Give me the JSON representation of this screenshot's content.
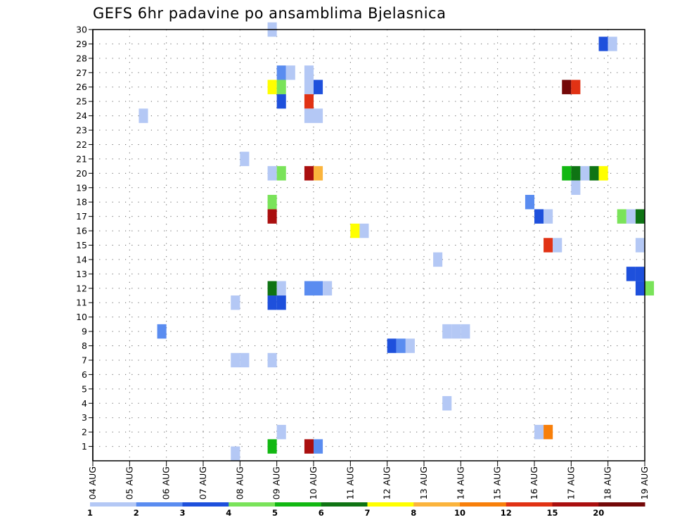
{
  "chart_data": {
    "type": "heatmap",
    "title": "GEFS 6hr padavine po ansamblima Bjelasnica",
    "x_tick_labels": [
      "04 AUG",
      "05 AUG",
      "06 AUG",
      "07 AUG",
      "08 AUG",
      "09 AUG",
      "10 AUG",
      "11 AUG",
      "12 AUG",
      "13 AUG",
      "14 AUG",
      "15 AUG",
      "16 AUG",
      "17 AUG",
      "18 AUG",
      "19 AUG"
    ],
    "y_tick_labels": [
      "1",
      "2",
      "3",
      "4",
      "5",
      "6",
      "7",
      "8",
      "9",
      "10",
      "11",
      "12",
      "13",
      "14",
      "15",
      "16",
      "17",
      "18",
      "19",
      "20",
      "21",
      "22",
      "23",
      "24",
      "25",
      "26",
      "27",
      "28",
      "29",
      "30"
    ],
    "xlim_days": [
      0,
      15
    ],
    "ylim_members": [
      0,
      30
    ],
    "grid": "dotted",
    "legend": {
      "placement": "bottom",
      "labels": [
        "1",
        "2",
        "3",
        "4",
        "5",
        "6",
        "7",
        "8",
        "10",
        "12",
        "15",
        "20"
      ],
      "colors": [
        "#b4c8f5",
        "#5a8cf0",
        "#1e50dc",
        "#7ae35a",
        "#12b812",
        "#0f7414",
        "#ffff00",
        "#fbb43c",
        "#f87f0a",
        "#e13214",
        "#aa0f0f",
        "#740808"
      ]
    },
    "cells": [
      {
        "day": 3.75,
        "member": 0.0,
        "color": "#b4c8f5"
      },
      {
        "day": 4.75,
        "member": 29.5,
        "color": "#b4c8f5"
      },
      {
        "day": 13.75,
        "member": 28.5,
        "color": "#1e50dc"
      },
      {
        "day": 14.0,
        "member": 28.5,
        "color": "#b4c8f5"
      },
      {
        "day": 5.0,
        "member": 26.5,
        "color": "#5a8cf0"
      },
      {
        "day": 5.25,
        "member": 26.5,
        "color": "#b4c8f5"
      },
      {
        "day": 5.75,
        "member": 26.5,
        "color": "#b4c8f5"
      },
      {
        "day": 4.75,
        "member": 25.5,
        "color": "#ffff00"
      },
      {
        "day": 5.0,
        "member": 25.5,
        "color": "#7ae35a"
      },
      {
        "day": 5.75,
        "member": 25.5,
        "color": "#b4c8f5"
      },
      {
        "day": 6.0,
        "member": 25.5,
        "color": "#1e50dc"
      },
      {
        "day": 12.75,
        "member": 25.5,
        "color": "#740808"
      },
      {
        "day": 13.0,
        "member": 25.5,
        "color": "#e13214"
      },
      {
        "day": 5.0,
        "member": 24.5,
        "color": "#1e50dc"
      },
      {
        "day": 5.75,
        "member": 24.5,
        "color": "#e13214"
      },
      {
        "day": 5.75,
        "member": 23.5,
        "color": "#b4c8f5"
      },
      {
        "day": 6.0,
        "member": 23.5,
        "color": "#b4c8f5"
      },
      {
        "day": 1.25,
        "member": 23.5,
        "color": "#b4c8f5"
      },
      {
        "day": 4.0,
        "member": 20.5,
        "color": "#b4c8f5"
      },
      {
        "day": 4.75,
        "member": 19.5,
        "color": "#b4c8f5"
      },
      {
        "day": 5.0,
        "member": 19.5,
        "color": "#7ae35a"
      },
      {
        "day": 5.75,
        "member": 19.5,
        "color": "#aa0f0f"
      },
      {
        "day": 6.0,
        "member": 19.5,
        "color": "#fbb43c"
      },
      {
        "day": 12.75,
        "member": 19.5,
        "color": "#12b812"
      },
      {
        "day": 13.0,
        "member": 19.5,
        "color": "#0f7414"
      },
      {
        "day": 13.25,
        "member": 19.5,
        "color": "#b4c8f5"
      },
      {
        "day": 13.5,
        "member": 19.5,
        "color": "#0f7414"
      },
      {
        "day": 13.75,
        "member": 19.5,
        "color": "#ffff00"
      },
      {
        "day": 13.0,
        "member": 18.5,
        "color": "#b4c8f5"
      },
      {
        "day": 4.75,
        "member": 17.5,
        "color": "#7ae35a"
      },
      {
        "day": 11.75,
        "member": 17.5,
        "color": "#5a8cf0"
      },
      {
        "day": 4.75,
        "member": 16.5,
        "color": "#aa0f0f"
      },
      {
        "day": 12.0,
        "member": 16.5,
        "color": "#1e50dc"
      },
      {
        "day": 12.25,
        "member": 16.5,
        "color": "#b4c8f5"
      },
      {
        "day": 14.25,
        "member": 16.5,
        "color": "#7ae35a"
      },
      {
        "day": 14.5,
        "member": 16.5,
        "color": "#b4c8f5"
      },
      {
        "day": 14.75,
        "member": 16.5,
        "color": "#0f7414"
      },
      {
        "day": 7.0,
        "member": 15.5,
        "color": "#ffff00"
      },
      {
        "day": 7.25,
        "member": 15.5,
        "color": "#b4c8f5"
      },
      {
        "day": 12.25,
        "member": 14.5,
        "color": "#e13214"
      },
      {
        "day": 12.5,
        "member": 14.5,
        "color": "#b4c8f5"
      },
      {
        "day": 14.75,
        "member": 14.5,
        "color": "#b4c8f5"
      },
      {
        "day": 9.25,
        "member": 13.5,
        "color": "#b4c8f5"
      },
      {
        "day": 14.5,
        "member": 12.5,
        "color": "#1e50dc"
      },
      {
        "day": 14.75,
        "member": 12.5,
        "color": "#1e50dc"
      },
      {
        "day": 4.75,
        "member": 11.5,
        "color": "#0f7414"
      },
      {
        "day": 5.0,
        "member": 11.5,
        "color": "#b4c8f5"
      },
      {
        "day": 5.75,
        "member": 11.5,
        "color": "#5a8cf0"
      },
      {
        "day": 6.0,
        "member": 11.5,
        "color": "#5a8cf0"
      },
      {
        "day": 6.25,
        "member": 11.5,
        "color": "#b4c8f5"
      },
      {
        "day": 14.75,
        "member": 11.5,
        "color": "#1e50dc"
      },
      {
        "day": 15.0,
        "member": 11.5,
        "color": "#7ae35a"
      },
      {
        "day": 4.75,
        "member": 10.5,
        "color": "#1e50dc"
      },
      {
        "day": 5.0,
        "member": 10.5,
        "color": "#1e50dc"
      },
      {
        "day": 3.75,
        "member": 10.5,
        "color": "#b4c8f5"
      },
      {
        "day": 1.75,
        "member": 8.5,
        "color": "#5a8cf0"
      },
      {
        "day": 9.5,
        "member": 8.5,
        "color": "#b4c8f5"
      },
      {
        "day": 9.75,
        "member": 8.5,
        "color": "#b4c8f5"
      },
      {
        "day": 10.0,
        "member": 8.5,
        "color": "#b4c8f5"
      },
      {
        "day": 8.0,
        "member": 7.5,
        "color": "#1e50dc"
      },
      {
        "day": 8.25,
        "member": 7.5,
        "color": "#5a8cf0"
      },
      {
        "day": 8.5,
        "member": 7.5,
        "color": "#b4c8f5"
      },
      {
        "day": 3.75,
        "member": 6.5,
        "color": "#b4c8f5"
      },
      {
        "day": 4.0,
        "member": 6.5,
        "color": "#b4c8f5"
      },
      {
        "day": 4.75,
        "member": 6.5,
        "color": "#b4c8f5"
      },
      {
        "day": 9.5,
        "member": 3.5,
        "color": "#b4c8f5"
      },
      {
        "day": 5.0,
        "member": 1.5,
        "color": "#b4c8f5"
      },
      {
        "day": 12.0,
        "member": 1.5,
        "color": "#b4c8f5"
      },
      {
        "day": 12.25,
        "member": 1.5,
        "color": "#f87f0a"
      },
      {
        "day": 4.75,
        "member": 0.5,
        "color": "#12b812"
      },
      {
        "day": 5.75,
        "member": 0.5,
        "color": "#aa0f0f"
      },
      {
        "day": 6.0,
        "member": 0.5,
        "color": "#5a8cf0"
      }
    ]
  }
}
